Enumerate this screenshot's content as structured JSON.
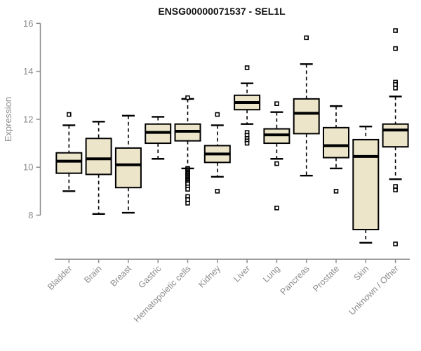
{
  "chart_data": {
    "type": "boxplot",
    "title": "ENSG00000071537 - SEL1L",
    "ylabel": "Expression",
    "xlabel": "",
    "yticks": [
      8,
      10,
      12,
      14,
      16
    ],
    "ylim": [
      8,
      16
    ],
    "grid": false,
    "legend": "none",
    "categories": [
      "Bladder",
      "Brain",
      "Breast",
      "Gastric",
      "Hematopoietic cells",
      "Kidney",
      "Liver",
      "Lung",
      "Pancreas",
      "Prostate",
      "Skin",
      "Unknown / Other"
    ],
    "series": [
      {
        "name": "Bladder",
        "low": 9.0,
        "q1": 9.75,
        "median": 10.25,
        "q3": 10.6,
        "high": 11.75,
        "outliers": [
          12.2
        ]
      },
      {
        "name": "Brain",
        "low": 8.05,
        "q1": 9.7,
        "median": 10.35,
        "q3": 11.2,
        "high": 11.9,
        "outliers": []
      },
      {
        "name": "Breast",
        "low": 8.1,
        "q1": 9.15,
        "median": 10.1,
        "q3": 10.8,
        "high": 12.15,
        "outliers": []
      },
      {
        "name": "Gastric",
        "low": 10.35,
        "q1": 11.0,
        "median": 11.45,
        "q3": 11.8,
        "high": 12.1,
        "outliers": []
      },
      {
        "name": "Hematopoietic cells",
        "low": 9.95,
        "q1": 11.1,
        "median": 11.5,
        "q3": 11.8,
        "high": 12.85,
        "outliers": [
          12.9,
          9.95,
          9.9,
          9.85,
          9.8,
          9.75,
          9.7,
          9.65,
          9.6,
          9.55,
          9.5,
          9.45,
          9.4,
          9.35,
          9.3,
          9.18,
          9.08,
          8.78,
          8.65,
          8.5
        ]
      },
      {
        "name": "Kidney",
        "low": 9.6,
        "q1": 10.2,
        "median": 10.55,
        "q3": 10.9,
        "high": 11.75,
        "outliers": [
          12.2,
          9.0
        ]
      },
      {
        "name": "Liver",
        "low": 11.8,
        "q1": 12.4,
        "median": 12.7,
        "q3": 13.0,
        "high": 13.5,
        "outliers": [
          14.15,
          11.45,
          11.33,
          11.2,
          11.1,
          11.0
        ]
      },
      {
        "name": "Lung",
        "low": 10.35,
        "q1": 11.0,
        "median": 11.35,
        "q3": 11.6,
        "high": 12.3,
        "outliers": [
          12.65,
          10.15,
          8.3
        ]
      },
      {
        "name": "Pancreas",
        "low": 9.65,
        "q1": 11.4,
        "median": 12.25,
        "q3": 12.85,
        "high": 14.3,
        "outliers": [
          15.4
        ]
      },
      {
        "name": "Prostate",
        "low": 9.95,
        "q1": 10.4,
        "median": 10.9,
        "q3": 11.65,
        "high": 12.55,
        "outliers": [
          9.0
        ]
      },
      {
        "name": "Skin",
        "low": 6.85,
        "q1": 7.4,
        "median": 10.45,
        "q3": 11.15,
        "high": 11.7,
        "outliers": []
      },
      {
        "name": "Unknown / Other",
        "low": 9.5,
        "q1": 10.85,
        "median": 11.55,
        "q3": 11.8,
        "high": 12.95,
        "outliers": [
          15.7,
          14.95,
          13.55,
          13.45,
          13.3,
          9.2,
          9.05,
          6.8
        ]
      }
    ],
    "colors": {
      "box_fill": "#ece5c9",
      "box_stroke": "#000000",
      "median": "#000000",
      "whisker": "#000000",
      "outlier_fill": "#ffffff",
      "axis": "#8c8c8c",
      "tick_label": "#8c8c8c",
      "title": "#111111",
      "background": "#ffffff"
    }
  }
}
